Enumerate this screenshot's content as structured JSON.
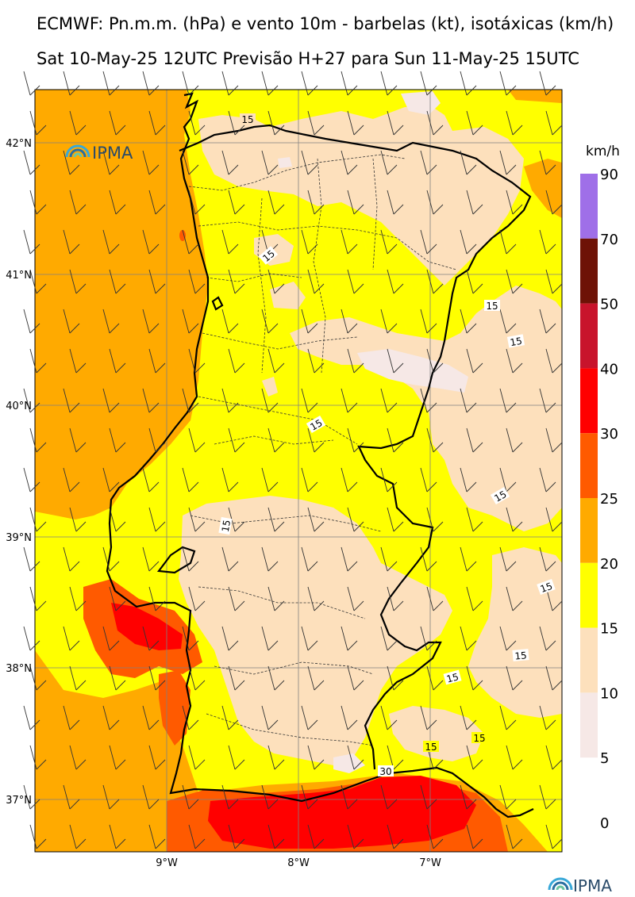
{
  "title_line1": "ECMWF: Pn.m.m. (hPa) e vento 10m - barbelas (kt), isotáxicas (km/h)",
  "title_line2": "Sat 10-May-25 12UTC Previsão H+27 para Sun 11-May-25 15UTC",
  "logo_text": "IPMA",
  "colorbar": {
    "unit": "km/h",
    "bins": [
      {
        "label": "90",
        "color": "#9f6fe8"
      },
      {
        "label": "70",
        "color": "#6e1206"
      },
      {
        "label": "50",
        "color": "#c8142c"
      },
      {
        "label": "40",
        "color": "#ff0000"
      },
      {
        "label": "30",
        "color": "#ff5a00"
      },
      {
        "label": "25",
        "color": "#ffaa00"
      },
      {
        "label": "20",
        "color": "#ffff00"
      },
      {
        "label": "15",
        "color": "#fde0bc"
      },
      {
        "label": "10",
        "color": "#f6e8e6"
      },
      {
        "label": "5",
        "color": "#ffffff"
      },
      {
        "label": "0",
        "color": "#ffffff"
      }
    ]
  },
  "lat_labels": [
    "42°N",
    "41°N",
    "40°N",
    "39°N",
    "38°N",
    "37°N"
  ],
  "lon_labels": [
    "9°W",
    "8°W",
    "7°W"
  ],
  "contour_labels": [
    "15",
    "15",
    "15",
    "15",
    "15",
    "15",
    "15",
    "15",
    "15",
    "15",
    "15",
    "15",
    "30"
  ]
}
